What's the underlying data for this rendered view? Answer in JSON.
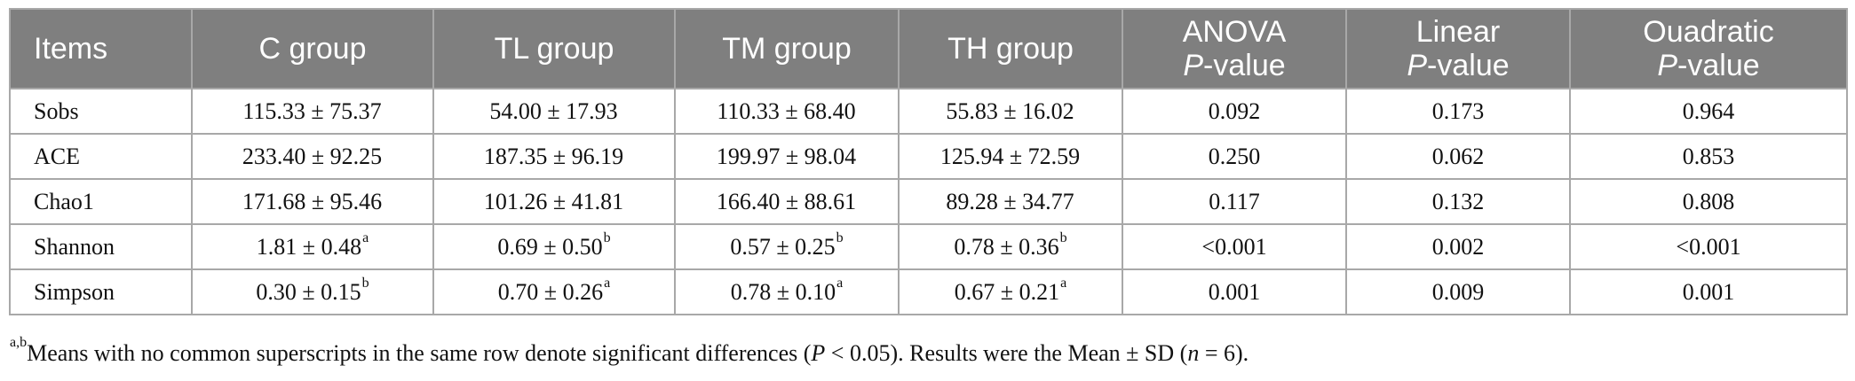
{
  "table": {
    "headers": [
      {
        "line1": "Items",
        "line2": "",
        "line2_italic": ""
      },
      {
        "line1": "C group",
        "line2": "",
        "line2_italic": ""
      },
      {
        "line1": "TL group",
        "line2": "",
        "line2_italic": ""
      },
      {
        "line1": "TM group",
        "line2": "",
        "line2_italic": ""
      },
      {
        "line1": "TH group",
        "line2": "",
        "line2_italic": ""
      },
      {
        "line1": "ANOVA",
        "line2_italic": "P",
        "line2": "-value"
      },
      {
        "line1": "Linear",
        "line2_italic": "P",
        "line2": "-value"
      },
      {
        "line1": "Ouadratic",
        "line2_italic": "P",
        "line2": "-value"
      }
    ],
    "rows": [
      {
        "item": "Sobs",
        "c": {
          "v": "115.33 ± 75.37",
          "s": ""
        },
        "tl": {
          "v": "54.00 ± 17.93",
          "s": ""
        },
        "tm": {
          "v": "110.33 ± 68.40",
          "s": ""
        },
        "th": {
          "v": "55.83 ± 16.02",
          "s": ""
        },
        "anova": "0.092",
        "linear": "0.173",
        "quadratic": "0.964"
      },
      {
        "item": "ACE",
        "c": {
          "v": "233.40 ± 92.25",
          "s": ""
        },
        "tl": {
          "v": "187.35 ± 96.19",
          "s": ""
        },
        "tm": {
          "v": "199.97 ± 98.04",
          "s": ""
        },
        "th": {
          "v": "125.94 ± 72.59",
          "s": ""
        },
        "anova": "0.250",
        "linear": "0.062",
        "quadratic": "0.853"
      },
      {
        "item": "Chao1",
        "c": {
          "v": "171.68 ± 95.46",
          "s": ""
        },
        "tl": {
          "v": "101.26 ± 41.81",
          "s": ""
        },
        "tm": {
          "v": "166.40 ± 88.61",
          "s": ""
        },
        "th": {
          "v": "89.28 ± 34.77",
          "s": ""
        },
        "anova": "0.117",
        "linear": "0.132",
        "quadratic": "0.808"
      },
      {
        "item": "Shannon",
        "c": {
          "v": "1.81 ± 0.48",
          "s": "a"
        },
        "tl": {
          "v": "0.69 ± 0.50",
          "s": "b"
        },
        "tm": {
          "v": "0.57 ± 0.25",
          "s": "b"
        },
        "th": {
          "v": "0.78 ± 0.36",
          "s": "b"
        },
        "anova": "<0.001",
        "linear": "0.002",
        "quadratic": "<0.001"
      },
      {
        "item": "Simpson",
        "c": {
          "v": "0.30 ± 0.15",
          "s": "b"
        },
        "tl": {
          "v": "0.70 ± 0.26",
          "s": "a"
        },
        "tm": {
          "v": "0.78 ± 0.10",
          "s": "a"
        },
        "th": {
          "v": "0.67 ± 0.21",
          "s": "a"
        },
        "anova": "0.001",
        "linear": "0.009",
        "quadratic": "0.001"
      }
    ]
  },
  "footnote": {
    "sup": "a,b",
    "part1": "Means with no common superscripts in the same row denote significant differences (",
    "p_italic": "P",
    "part2": " < 0.05). Results were the Mean ± SD (",
    "n_italic": "n",
    "part3": " = 6)."
  },
  "colors": {
    "header_bg": "#7f7f7f",
    "header_text": "#ffffff",
    "border": "#a8a8a8"
  }
}
